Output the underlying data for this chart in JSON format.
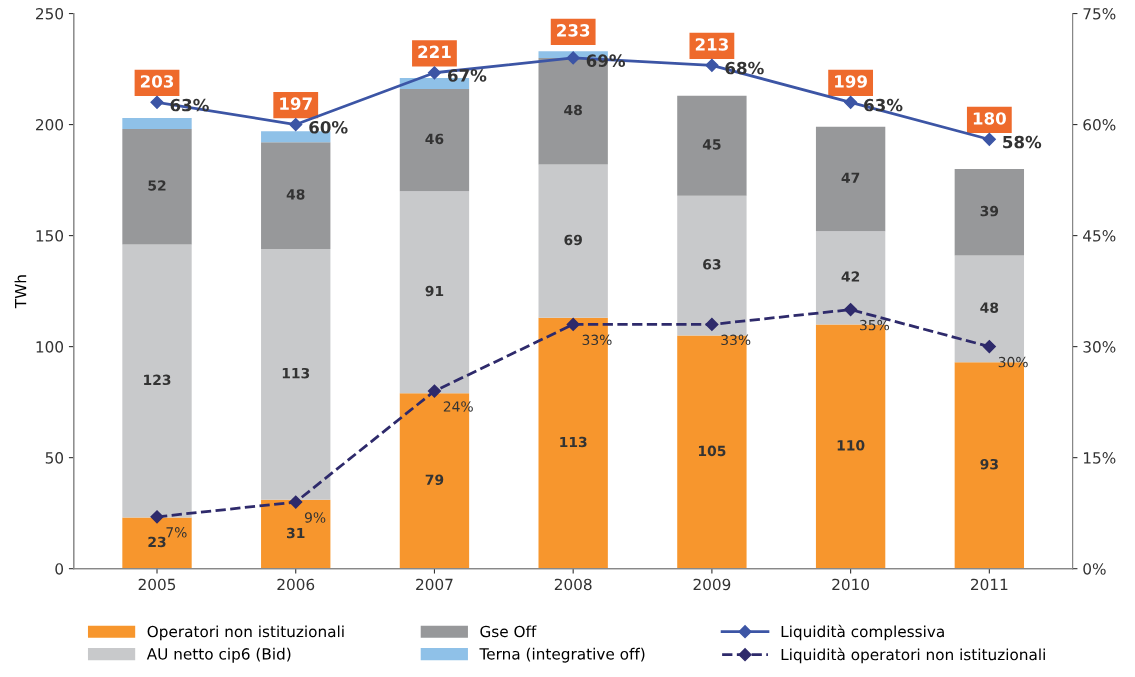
{
  "chart_data": {
    "type": "bar",
    "stacked": true,
    "ylabel": "TWh",
    "categories": [
      "2005",
      "2006",
      "2007",
      "2008",
      "2009",
      "2010",
      "2011"
    ],
    "ylim": [
      0,
      250
    ],
    "yticks": [
      0,
      50,
      100,
      150,
      200,
      250
    ],
    "y2lim": [
      0,
      75
    ],
    "y2ticks": [
      {
        "value": 0,
        "label": "0%"
      },
      {
        "value": 15,
        "label": "15%"
      },
      {
        "value": 30,
        "label": "30%"
      },
      {
        "value": 45,
        "label": "45%"
      },
      {
        "value": 60,
        "label": "60%"
      },
      {
        "value": 75,
        "label": "75%"
      }
    ],
    "grid": false,
    "legend": "bottom",
    "totals": [
      "203",
      "197",
      "221",
      "233",
      "213",
      "199",
      "180"
    ],
    "series": [
      {
        "name": "Operatori non istituzionali",
        "color": "#f7962d",
        "values": [
          23,
          31,
          79,
          113,
          105,
          110,
          93
        ],
        "value_labels": [
          "23",
          "31",
          "79",
          "113",
          "105",
          "110",
          "93"
        ]
      },
      {
        "name": "AU netto cip6 (Bid)",
        "color": "#c8c9cb",
        "values": [
          123,
          113,
          91,
          69,
          63,
          42,
          48
        ],
        "value_labels": [
          "123",
          "113",
          "91",
          "69",
          "63",
          "42",
          "48"
        ]
      },
      {
        "name": "Gse Off",
        "color": "#97989a",
        "values": [
          52,
          48,
          46,
          48,
          45,
          47,
          39
        ],
        "value_labels": [
          "52",
          "48",
          "46",
          "48",
          "45",
          "47",
          "39"
        ]
      },
      {
        "name": "Terna (integrative off)",
        "color": "#8fc1e8",
        "values": [
          5,
          5,
          5,
          3,
          0,
          0,
          0
        ]
      },
      {
        "name": "Liquidità complessiva",
        "type": "line",
        "axis": "y2",
        "color": "#3c55a5",
        "marker": "diamond",
        "line_style": "solid",
        "values": [
          63,
          60,
          67,
          69,
          68,
          63,
          58
        ],
        "value_labels": [
          "63%",
          "60%",
          "67%",
          "69%",
          "68%",
          "63%",
          "58%"
        ]
      },
      {
        "name": "Liquidità operatori non istituzionali",
        "type": "line",
        "axis": "y2",
        "color": "#2e2a6b",
        "marker": "diamond",
        "line_style": "dashed",
        "values": [
          7,
          9,
          24,
          33,
          33,
          35,
          30
        ],
        "value_labels": [
          "7%",
          "9%",
          "24%",
          "33%",
          "33%",
          "35%",
          "30%"
        ]
      }
    ]
  }
}
